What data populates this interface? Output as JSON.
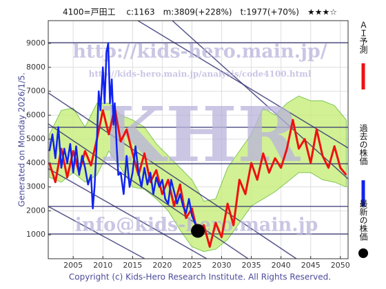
{
  "chart_data": {
    "type": "line",
    "title": "4100=戸田工　 c:1163　m:3809(+228%)　t:1977(+70%)　★★★☆",
    "side_label": "Generated on Monday 2026/1/5.",
    "footer": "Copyright (c) Kids-Hero Research Institute. All Rights Reserved.",
    "watermarks": [
      "http://kids-hero.main.jp/",
      "http://kids-hero.main.jp/analysis/code4100.html",
      "KHR",
      "info@kids-hero.main.jp"
    ],
    "xlim": [
      2000.8,
      2051.3
    ],
    "ylim": [
      0,
      9950
    ],
    "xticks": [
      2005,
      2010,
      2015,
      2020,
      2025,
      2030,
      2035,
      2040,
      2045,
      2050
    ],
    "yticks": [
      1000,
      2000,
      3000,
      4000,
      5000,
      6000,
      7000,
      8000,
      9000
    ],
    "grid": true,
    "band": {
      "color": "#c8ee7a",
      "x": [
        2001,
        2003,
        2005,
        2007,
        2009,
        2011,
        2013,
        2015,
        2017,
        2019,
        2021,
        2023,
        2025,
        2027,
        2029,
        2031,
        2033,
        2035,
        2037,
        2039,
        2041,
        2043,
        2045,
        2047,
        2049,
        2051
      ],
      "upper": [
        5200,
        6200,
        6300,
        5500,
        6500,
        6500,
        6000,
        5800,
        5500,
        4800,
        4300,
        3800,
        3300,
        2400,
        2500,
        3800,
        4500,
        5200,
        6300,
        6000,
        6500,
        6800,
        6600,
        6600,
        6400,
        5800
      ],
      "lower": [
        3400,
        3200,
        3600,
        3200,
        3500,
        4500,
        3800,
        3000,
        2900,
        2500,
        2000,
        1200,
        500,
        300,
        400,
        800,
        1500,
        2200,
        2500,
        2800,
        3200,
        3600,
        3600,
        3300,
        3200,
        3000
      ]
    },
    "series": [
      {
        "name": "ＡＩ予測",
        "color": "#ee1111",
        "x": [
          2001,
          2002,
          2003,
          2004,
          2005,
          2006,
          2007,
          2008,
          2009,
          2010,
          2011,
          2012,
          2013,
          2014,
          2015,
          2016,
          2017,
          2018,
          2019,
          2020,
          2021,
          2022,
          2023,
          2024,
          2025,
          2026,
          2027,
          2028,
          2029,
          2030,
          2031,
          2032,
          2033,
          2034,
          2035,
          2036,
          2037,
          2038,
          2039,
          2040,
          2041,
          2042,
          2043,
          2044,
          2045,
          2046,
          2047,
          2048,
          2049,
          2050,
          2051
        ],
        "values": [
          4000,
          3200,
          4600,
          3400,
          4500,
          3600,
          4500,
          3900,
          5000,
          6200,
          5200,
          6300,
          4900,
          5400,
          4400,
          3500,
          4400,
          3200,
          3700,
          2700,
          3300,
          2200,
          3100,
          1700,
          2100,
          1000,
          1400,
          500,
          1500,
          900,
          2300,
          1400,
          3300,
          2700,
          4000,
          3300,
          4400,
          3600,
          4200,
          3800,
          4600,
          5800,
          4600,
          5000,
          4000,
          5400,
          4300,
          3800,
          4700,
          3800,
          3500
        ]
      },
      {
        "name": "過去の株価",
        "color": "#1122ee",
        "x": [
          2001,
          2001.5,
          2002,
          2002.5,
          2003,
          2003.5,
          2004,
          2004.5,
          2005,
          2005.5,
          2006,
          2006.5,
          2007,
          2007.5,
          2008,
          2008.3,
          2008.6,
          2009,
          2009.3,
          2009.6,
          2010,
          2010.3,
          2010.6,
          2010.9,
          2011.2,
          2011.5,
          2011.8,
          2012,
          2012.3,
          2012.6,
          2013,
          2013.5,
          2014,
          2014.5,
          2015,
          2015.5,
          2016,
          2016.5,
          2017,
          2017.5,
          2018,
          2018.5,
          2019,
          2019.5,
          2020,
          2020.5,
          2021,
          2021.5,
          2022,
          2022.5,
          2023,
          2023.5,
          2024,
          2024.5,
          2025,
          2025.5,
          2026
        ],
        "values": [
          4500,
          5200,
          4200,
          5500,
          3800,
          4600,
          4000,
          4800,
          3600,
          4700,
          3500,
          4300,
          3800,
          3100,
          3500,
          2100,
          3000,
          5000,
          7000,
          6200,
          8000,
          6500,
          8600,
          9000,
          6500,
          7500,
          5600,
          6500,
          4800,
          3500,
          3600,
          2700,
          4300,
          3000,
          3600,
          4700,
          3600,
          3000,
          3800,
          3100,
          3600,
          2700,
          3400,
          3000,
          3300,
          2500,
          2300,
          3300,
          2800,
          2300,
          2700,
          2200,
          1900,
          2500,
          1800,
          1500,
          1163
        ]
      },
      {
        "name": "最新の株価",
        "color": "#000000",
        "x": [
          2026
        ],
        "values": [
          1163
        ]
      }
    ]
  }
}
